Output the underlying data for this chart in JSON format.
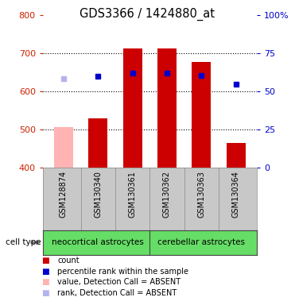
{
  "title": "GDS3366 / 1424880_at",
  "samples": [
    "GSM128874",
    "GSM130340",
    "GSM130361",
    "GSM130362",
    "GSM130363",
    "GSM130364"
  ],
  "bar_values": [
    507,
    530,
    712,
    712,
    678,
    466
  ],
  "bar_colors": [
    "#ffb3b3",
    "#cc0000",
    "#cc0000",
    "#cc0000",
    "#cc0000",
    "#cc0000"
  ],
  "rank_values": [
    634,
    641,
    648,
    648,
    643,
    619
  ],
  "rank_colors": [
    "#b3b3ee",
    "#0000cc",
    "#0000cc",
    "#0000cc",
    "#0000cc",
    "#0000cc"
  ],
  "ylim_left": [
    400,
    800
  ],
  "ylim_right": [
    0,
    100
  ],
  "yticks_left": [
    400,
    500,
    600,
    700,
    800
  ],
  "yticks_right": [
    0,
    25,
    50,
    75,
    100
  ],
  "right_tick_labels": [
    "0",
    "25",
    "50",
    "75",
    "100%"
  ],
  "group1_label": "neocortical astrocytes",
  "group2_label": "cerebellar astrocytes",
  "group_bg": "#66dd66",
  "sample_bg": "#c8c8c8",
  "plot_bg": "#ffffff",
  "left_color": "#cc2200",
  "right_color": "#0000cc",
  "legend_items": [
    {
      "color": "#cc0000",
      "label": "count"
    },
    {
      "color": "#0000cc",
      "label": "percentile rank within the sample"
    },
    {
      "color": "#ffb3b3",
      "label": "value, Detection Call = ABSENT"
    },
    {
      "color": "#b3b3ee",
      "label": "rank, Detection Call = ABSENT"
    }
  ]
}
